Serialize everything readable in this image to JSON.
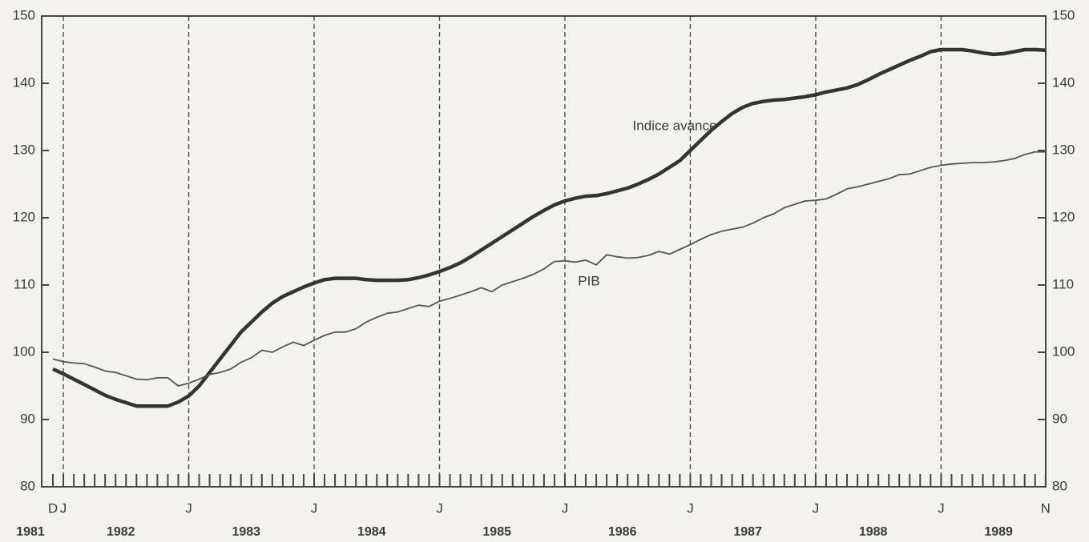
{
  "chart_data": {
    "type": "line",
    "categories": [
      "D",
      "J",
      null,
      null,
      null,
      null,
      null,
      null,
      null,
      null,
      null,
      null,
      null,
      "J",
      null,
      null,
      null,
      null,
      null,
      null,
      null,
      null,
      null,
      null,
      null,
      "J",
      null,
      null,
      null,
      null,
      null,
      null,
      null,
      null,
      null,
      null,
      null,
      "J",
      null,
      null,
      null,
      null,
      null,
      null,
      null,
      null,
      null,
      null,
      null,
      "J",
      null,
      null,
      null,
      null,
      null,
      null,
      null,
      null,
      null,
      null,
      null,
      "J",
      null,
      null,
      null,
      null,
      null,
      null,
      null,
      null,
      null,
      null,
      null,
      "J",
      null,
      null,
      null,
      null,
      null,
      null,
      null,
      null,
      null,
      null,
      null,
      "J",
      null,
      null,
      null,
      null,
      null,
      null,
      null,
      null,
      null,
      "N"
    ],
    "years": [
      "1981",
      "1982",
      "1983",
      "1984",
      "1985",
      "1986",
      "1987",
      "1988",
      "1989"
    ],
    "series": [
      {
        "name": "Indice avance",
        "color": "#333333",
        "values": [
          97.5,
          96.8,
          96,
          95.2,
          94.4,
          93.6,
          93,
          92.5,
          92,
          92,
          92,
          92,
          92.6,
          93.5,
          95,
          97,
          99,
          101,
          103,
          104.5,
          106,
          107.3,
          108.3,
          109,
          109.7,
          110.3,
          110.8,
          111,
          111,
          111,
          110.8,
          110.7,
          110.7,
          110.7,
          110.8,
          111.1,
          111.5,
          112,
          112.6,
          113.3,
          114.2,
          115.2,
          116.2,
          117.2,
          118.2,
          119.2,
          120.2,
          121.1,
          121.9,
          122.5,
          122.9,
          123.2,
          123.3,
          123.6,
          124,
          124.4,
          125,
          125.7,
          126.5,
          127.5,
          128.5,
          130,
          131.5,
          133,
          134.3,
          135.5,
          136.4,
          137,
          137.3,
          137.5,
          137.6,
          137.8,
          138,
          138.3,
          138.7,
          139,
          139.3,
          139.8,
          140.5,
          141.3,
          142,
          142.7,
          143.4,
          144,
          144.7,
          145,
          145,
          145,
          144.8,
          144.5,
          144.3,
          144.4,
          144.7,
          145,
          145,
          144.9
        ]
      },
      {
        "name": "PIB",
        "color": "#555555",
        "values": [
          99,
          98.6,
          98.4,
          98.3,
          97.8,
          97.2,
          97,
          96.5,
          96,
          95.9,
          96.2,
          96.2,
          95,
          95.4,
          96,
          96.7,
          97,
          97.5,
          98.5,
          99.2,
          100.3,
          100,
          100.8,
          101.5,
          101,
          101.8,
          102.5,
          103,
          103,
          103.5,
          104.5,
          105.2,
          105.8,
          106,
          106.5,
          107,
          106.8,
          107.6,
          108,
          108.5,
          109,
          109.6,
          109,
          110,
          110.5,
          111,
          111.6,
          112.4,
          113.5,
          113.6,
          113.4,
          113.7,
          113,
          114.5,
          114.2,
          114,
          114.1,
          114.4,
          115,
          114.6,
          115.3,
          116,
          116.8,
          117.5,
          118,
          118.3,
          118.6,
          119.2,
          120,
          120.6,
          121.5,
          122,
          122.5,
          122.6,
          122.8,
          123.5,
          124.3,
          124.6,
          125,
          125.4,
          125.8,
          126.4,
          126.5,
          127,
          127.5,
          127.8,
          128,
          128.1,
          128.2,
          128.2,
          128.3,
          128.5,
          128.8,
          129.4,
          129.8,
          129.8
        ]
      }
    ],
    "ylim": [
      80,
      150
    ],
    "yticks": [
      80,
      90,
      100,
      110,
      120,
      130,
      140,
      150
    ],
    "y2lim": [
      80,
      150
    ],
    "y2ticks": [
      80,
      90,
      100,
      110,
      120,
      130,
      140,
      150
    ],
    "vgrid": true
  }
}
